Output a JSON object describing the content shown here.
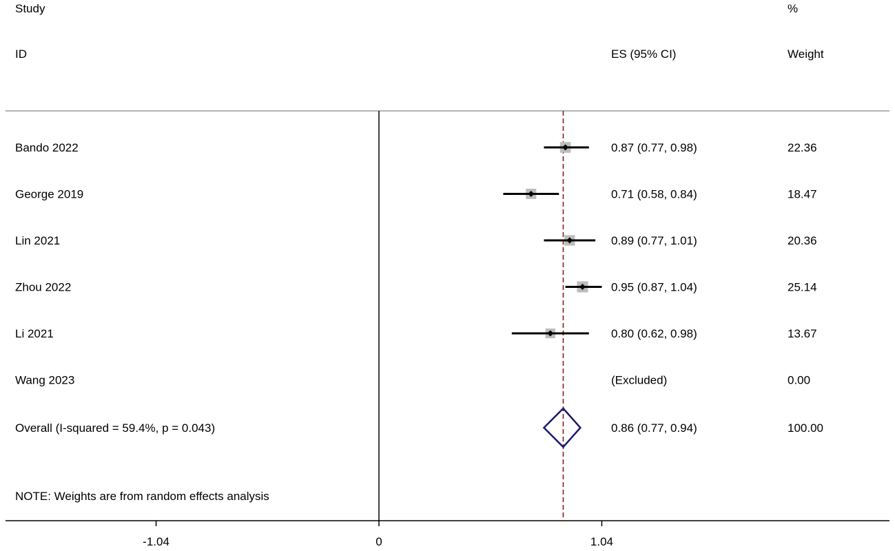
{
  "chart_data": {
    "type": "forest",
    "headers": {
      "study_line1": "Study",
      "study_line2": "ID",
      "es_header": "ES (95% CI)",
      "weight_line1": "%",
      "weight_line2": "Weight"
    },
    "studies": [
      {
        "id": "Bando 2022",
        "es": 0.87,
        "lo": 0.77,
        "hi": 0.98,
        "es_text": "0.87 (0.77, 0.98)",
        "weight": "22.36",
        "weight_value": 22.36
      },
      {
        "id": "George 2019",
        "es": 0.71,
        "lo": 0.58,
        "hi": 0.84,
        "es_text": "0.71 (0.58, 0.84)",
        "weight": "18.47",
        "weight_value": 18.47
      },
      {
        "id": "Lin 2021",
        "es": 0.89,
        "lo": 0.77,
        "hi": 1.01,
        "es_text": "0.89 (0.77, 1.01)",
        "weight": "20.36",
        "weight_value": 20.36
      },
      {
        "id": "Zhou 2022",
        "es": 0.95,
        "lo": 0.87,
        "hi": 1.04,
        "es_text": "0.95 (0.87, 1.04)",
        "weight": "25.14",
        "weight_value": 25.14
      },
      {
        "id": "Li 2021",
        "es": 0.8,
        "lo": 0.62,
        "hi": 0.98,
        "es_text": "0.80 (0.62, 0.98)",
        "weight": "13.67",
        "weight_value": 13.67
      },
      {
        "id": "Wang 2023",
        "es": null,
        "lo": null,
        "hi": null,
        "es_text": "(Excluded)",
        "weight": "0.00",
        "weight_value": 0
      }
    ],
    "overall": {
      "label": "Overall  (I-squared = 59.4%, p = 0.043)",
      "es": 0.86,
      "lo": 0.77,
      "hi": 0.94,
      "es_text": "0.86 (0.77, 0.94)",
      "weight": "100.00"
    },
    "note": "NOTE: Weights are from random effects analysis",
    "x_ticks": [
      {
        "value": -1.04,
        "label": "-1.04"
      },
      {
        "value": 0,
        "label": "0"
      },
      {
        "value": 1.04,
        "label": "1.04"
      }
    ],
    "x_range": [
      -1.74,
      1.04
    ],
    "null_line": 0,
    "colors": {
      "overall_line": "#8b1a1a",
      "diamond": "#1a1a6e",
      "weight_box": "#bdbdbd",
      "text": "#000000"
    }
  }
}
